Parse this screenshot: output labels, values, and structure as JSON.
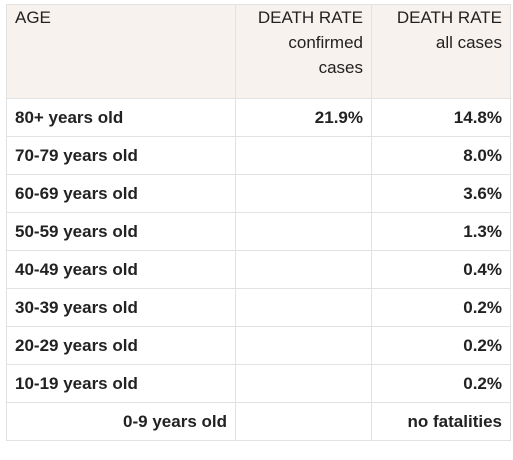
{
  "table": {
    "headers": {
      "age": "AGE",
      "confirmed_main": "DEATH RATE",
      "confirmed_sub_1": "confirmed",
      "confirmed_sub_2": "cases",
      "all_main": "DEATH RATE",
      "all_sub": "all cases"
    },
    "rows": [
      {
        "age": "80+ years old",
        "confirmed": "21.9%",
        "all": "14.8%"
      },
      {
        "age": "70-79 years old",
        "confirmed": "",
        "all": "8.0%"
      },
      {
        "age": "60-69 years old",
        "confirmed": "",
        "all": "3.6%"
      },
      {
        "age": "50-59 years old",
        "confirmed": "",
        "all": "1.3%"
      },
      {
        "age": "40-49 years old",
        "confirmed": "",
        "all": "0.4%"
      },
      {
        "age": "30-39 years old",
        "confirmed": "",
        "all": "0.2%"
      },
      {
        "age": "20-29 years old",
        "confirmed": "",
        "all": "0.2%"
      },
      {
        "age": "10-19 years old",
        "confirmed": "",
        "all": "0.2%"
      },
      {
        "age": "0-9 years old",
        "confirmed": "",
        "all": "no fatalities"
      }
    ]
  }
}
